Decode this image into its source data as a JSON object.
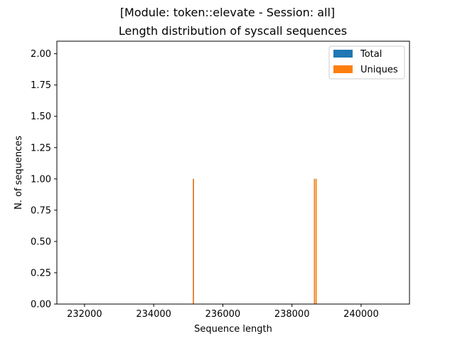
{
  "chart_data": {
    "type": "bar",
    "suptitle": "[Module: token::elevate - Session: all]",
    "title": "Length distribution of syscall sequences",
    "xlabel": "Sequence length",
    "ylabel": "N. of sequences",
    "xlim": [
      231200,
      241400
    ],
    "ylim": [
      0,
      2.1
    ],
    "x_ticks": [
      232000,
      234000,
      236000,
      238000,
      240000
    ],
    "x_tick_labels": [
      "232000",
      "234000",
      "236000",
      "238000",
      "240000"
    ],
    "y_ticks": [
      0,
      0.25,
      0.5,
      0.75,
      1.0,
      1.25,
      1.5,
      1.75,
      2.0
    ],
    "y_tick_labels": [
      "0.00",
      "0.25",
      "0.50",
      "0.75",
      "1.00",
      "1.25",
      "1.50",
      "1.75",
      "2.00"
    ],
    "legend_position": "top-right",
    "grid": false,
    "series": [
      {
        "name": "Total",
        "color": "#1f77b4",
        "points": [
          {
            "x": 235150,
            "y": 1
          },
          {
            "x": 238650,
            "y": 1
          },
          {
            "x": 238700,
            "y": 1
          }
        ]
      },
      {
        "name": "Uniques",
        "color": "#ff7f0e",
        "points": [
          {
            "x": 235150,
            "y": 1
          },
          {
            "x": 238650,
            "y": 1
          },
          {
            "x": 238700,
            "y": 1
          }
        ]
      }
    ]
  }
}
